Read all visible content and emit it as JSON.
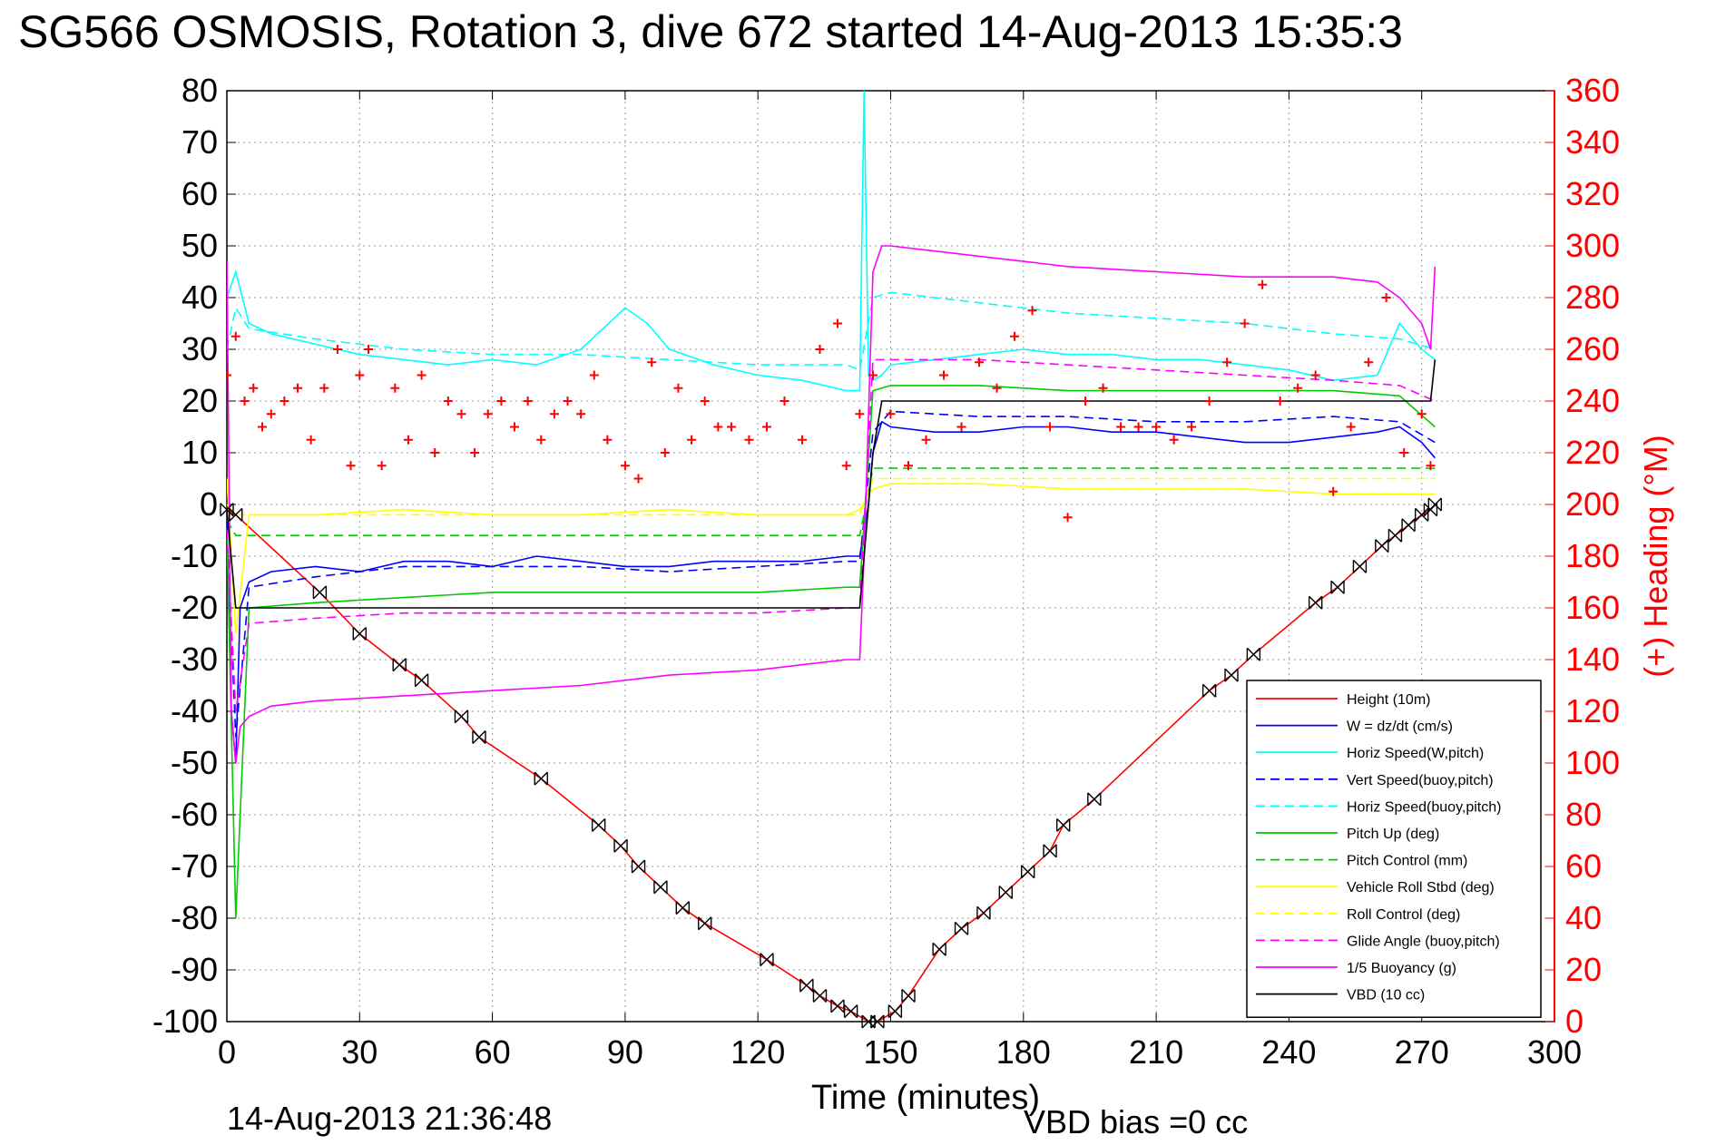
{
  "chart_data": {
    "type": "line",
    "title": "SG566 OSMOSIS, Rotation 3, dive 672 started 14-Aug-2013 15:35:3",
    "xlabel": "Time (minutes)",
    "ylabel": "",
    "y2label": "(+) Heading (°M)",
    "xlim": [
      0,
      300
    ],
    "ylim": [
      -100,
      80
    ],
    "y2lim": [
      0,
      360
    ],
    "x_ticks": [
      0,
      30,
      60,
      90,
      120,
      150,
      180,
      210,
      240,
      270,
      300
    ],
    "y_ticks": [
      80,
      70,
      60,
      50,
      40,
      30,
      20,
      10,
      0,
      -10,
      -20,
      -30,
      -40,
      -50,
      -60,
      -70,
      -80,
      -90,
      -100
    ],
    "y2_ticks": [
      360,
      340,
      320,
      300,
      280,
      260,
      240,
      220,
      200,
      180,
      160,
      140,
      120,
      100,
      80,
      60,
      40,
      20,
      0
    ],
    "grid": true,
    "legend_position": "bottom-right",
    "legend": [
      {
        "label": "Height (10m)",
        "color": "#ff0000",
        "dash": "solid"
      },
      {
        "label": "W = dz/dt (cm/s)",
        "color": "#0000ff",
        "dash": "solid"
      },
      {
        "label": "Horiz Speed(W,pitch)",
        "color": "#00ffff",
        "dash": "solid"
      },
      {
        "label": "Vert Speed(buoy,pitch)",
        "color": "#0000ff",
        "dash": "dashed"
      },
      {
        "label": "Horiz Speed(buoy,pitch)",
        "color": "#00ffff",
        "dash": "dashed"
      },
      {
        "label": "Pitch Up (deg)",
        "color": "#00cc00",
        "dash": "solid"
      },
      {
        "label": "Pitch Control (mm)",
        "color": "#00cc00",
        "dash": "dashed"
      },
      {
        "label": "Vehicle Roll Stbd (deg)",
        "color": "#ffff00",
        "dash": "solid"
      },
      {
        "label": "Roll Control (deg)",
        "color": "#ffff00",
        "dash": "dashed"
      },
      {
        "label": "Glide Angle (buoy,pitch)",
        "color": "#ff00ff",
        "dash": "dashed"
      },
      {
        "label": "1/5 Buoyancy (g)",
        "color": "#ff00ff",
        "dash": "solid"
      },
      {
        "label": "VBD (10 cc)",
        "color": "#000000",
        "dash": "solid"
      }
    ],
    "series": [
      {
        "name": "Height (10m)",
        "color": "#ff0000",
        "dash": "solid",
        "axis": "left",
        "x": [
          0,
          2,
          21,
          30,
          39,
          44,
          53,
          57,
          71,
          84,
          89,
          93,
          98,
          103,
          108,
          122,
          131,
          134,
          138,
          141,
          145,
          147,
          151,
          154,
          161,
          166,
          171,
          176,
          181,
          186,
          189,
          196,
          222,
          227,
          232,
          246,
          251,
          256,
          261,
          264,
          267,
          270,
          272,
          273
        ],
        "y": [
          -1,
          -2,
          -17,
          -25,
          -31,
          -34,
          -41,
          -45,
          -53,
          -62,
          -66,
          -70,
          -74,
          -78,
          -81,
          -88,
          -93,
          -95,
          -97,
          -98,
          -100,
          -100,
          -98,
          -95,
          -86,
          -82,
          -79,
          -75,
          -71,
          -67,
          -62,
          -57,
          -36,
          -33,
          -29,
          -19,
          -16,
          -12,
          -8,
          -6,
          -4,
          -2,
          -1,
          0
        ]
      },
      {
        "name": "W = dz/dt (cm/s)",
        "color": "#0000ff",
        "dash": "solid",
        "axis": "left",
        "x": [
          0,
          1,
          2,
          3,
          5,
          10,
          20,
          30,
          40,
          50,
          60,
          70,
          80,
          90,
          100,
          110,
          120,
          130,
          140,
          143,
          145,
          146,
          148,
          150,
          160,
          170,
          180,
          190,
          200,
          210,
          220,
          230,
          240,
          250,
          260,
          265,
          270,
          273
        ],
        "y": [
          -3,
          -40,
          -50,
          -20,
          -15,
          -13,
          -12,
          -13,
          -11,
          -11,
          -12,
          -10,
          -11,
          -12,
          -12,
          -11,
          -11,
          -11,
          -10,
          -10,
          0,
          10,
          16,
          15,
          14,
          14,
          15,
          15,
          14,
          14,
          13,
          12,
          12,
          13,
          14,
          15,
          12,
          9
        ]
      },
      {
        "name": "Horiz Speed(W,pitch)",
        "color": "#00ffff",
        "dash": "solid",
        "axis": "left",
        "x": [
          0,
          2,
          5,
          10,
          20,
          30,
          40,
          50,
          60,
          70,
          80,
          90,
          95,
          100,
          110,
          120,
          130,
          140,
          143,
          144,
          145,
          146,
          148,
          150,
          160,
          170,
          180,
          190,
          200,
          210,
          220,
          230,
          240,
          250,
          260,
          265,
          270,
          273
        ],
        "y": [
          40,
          45,
          35,
          33,
          31,
          29,
          28,
          27,
          28,
          27,
          30,
          38,
          35,
          30,
          27,
          25,
          24,
          22,
          22,
          80,
          25,
          24,
          25,
          27,
          28,
          29,
          30,
          29,
          29,
          28,
          28,
          27,
          26,
          24,
          25,
          35,
          30,
          28
        ]
      },
      {
        "name": "Vert Speed(buoy,pitch)",
        "color": "#0000ff",
        "dash": "dashed",
        "axis": "left",
        "x": [
          0,
          2,
          5,
          20,
          40,
          60,
          80,
          100,
          120,
          140,
          143,
          146,
          150,
          170,
          190,
          210,
          230,
          250,
          265,
          273
        ],
        "y": [
          -5,
          -45,
          -16,
          -14,
          -12,
          -12,
          -12,
          -13,
          -12,
          -11,
          -11,
          14,
          18,
          17,
          17,
          16,
          16,
          17,
          16,
          12
        ]
      },
      {
        "name": "Horiz Speed(buoy,pitch)",
        "color": "#00ffff",
        "dash": "dashed",
        "axis": "left",
        "x": [
          0,
          2,
          5,
          20,
          40,
          60,
          80,
          100,
          120,
          140,
          143,
          146,
          150,
          170,
          190,
          210,
          230,
          250,
          265,
          273
        ],
        "y": [
          30,
          38,
          34,
          32,
          30,
          29,
          29,
          28,
          27,
          27,
          26,
          40,
          41,
          39,
          37,
          36,
          35,
          33,
          32,
          30
        ]
      },
      {
        "name": "Pitch Up (deg)",
        "color": "#00cc00",
        "dash": "solid",
        "axis": "left",
        "x": [
          0,
          2,
          5,
          20,
          40,
          60,
          80,
          100,
          120,
          140,
          143,
          146,
          150,
          170,
          190,
          210,
          230,
          250,
          265,
          273
        ],
        "y": [
          -5,
          -80,
          -20,
          -19,
          -18,
          -17,
          -17,
          -17,
          -17,
          -16,
          -16,
          22,
          23,
          23,
          22,
          22,
          22,
          22,
          21,
          15
        ]
      },
      {
        "name": "Pitch Control (mm)",
        "color": "#00cc00",
        "dash": "dashed",
        "axis": "left",
        "x": [
          0,
          2,
          5,
          20,
          40,
          60,
          80,
          100,
          120,
          140,
          143,
          146,
          150,
          170,
          190,
          210,
          230,
          250,
          265,
          273
        ],
        "y": [
          -3,
          -6,
          -6,
          -6,
          -6,
          -6,
          -6,
          -6,
          -6,
          -6,
          -6,
          7,
          7,
          7,
          7,
          7,
          7,
          7,
          7,
          7
        ]
      },
      {
        "name": "Vehicle Roll Stbd (deg)",
        "color": "#ffff00",
        "dash": "solid",
        "axis": "left",
        "x": [
          0,
          2,
          5,
          20,
          40,
          60,
          80,
          100,
          120,
          140,
          143,
          146,
          150,
          170,
          190,
          210,
          230,
          250,
          265,
          273
        ],
        "y": [
          5,
          -25,
          -2,
          -2,
          -1,
          -2,
          -2,
          -1,
          -2,
          -2,
          -1,
          3,
          4,
          4,
          3,
          3,
          3,
          2,
          2,
          2
        ]
      },
      {
        "name": "Roll Control (deg)",
        "color": "#ffff00",
        "dash": "dashed",
        "axis": "left",
        "x": [
          0,
          2,
          5,
          20,
          40,
          60,
          80,
          100,
          120,
          140,
          143,
          146,
          150,
          170,
          190,
          210,
          230,
          250,
          265,
          273
        ],
        "y": [
          0,
          -2,
          -2,
          -2,
          -2,
          -2,
          -2,
          -2,
          -2,
          -2,
          -2,
          5,
          5,
          5,
          5,
          5,
          5,
          5,
          5,
          5
        ]
      },
      {
        "name": "Glide Angle (buoy,pitch)",
        "color": "#ff00ff",
        "dash": "dashed",
        "axis": "left",
        "x": [
          0,
          2,
          5,
          20,
          40,
          60,
          80,
          100,
          120,
          140,
          143,
          146,
          150,
          170,
          190,
          210,
          230,
          250,
          265,
          273
        ],
        "y": [
          -5,
          -40,
          -23,
          -22,
          -21,
          -21,
          -21,
          -21,
          -21,
          -20,
          -20,
          28,
          28,
          28,
          27,
          26,
          25,
          24,
          23,
          20
        ]
      },
      {
        "name": "1/5 Buoyancy (g)",
        "color": "#ff00ff",
        "dash": "solid",
        "axis": "left",
        "x": [
          0,
          1,
          2,
          3,
          5,
          10,
          20,
          40,
          60,
          80,
          100,
          120,
          140,
          143,
          144,
          146,
          148,
          150,
          170,
          190,
          210,
          230,
          250,
          260,
          265,
          270,
          272,
          273
        ],
        "y": [
          47,
          -40,
          -50,
          -43,
          -41,
          -39,
          -38,
          -37,
          -36,
          -35,
          -33,
          -32,
          -30,
          -30,
          -10,
          45,
          50,
          50,
          48,
          46,
          45,
          44,
          44,
          43,
          40,
          35,
          30,
          46
        ]
      },
      {
        "name": "VBD (10 cc)",
        "color": "#000000",
        "dash": "solid",
        "axis": "left",
        "x": [
          0,
          2,
          5,
          140,
          143,
          146,
          148,
          150,
          200,
          250,
          270,
          272,
          273
        ],
        "y": [
          -1,
          -20,
          -20,
          -20,
          -20,
          10,
          20,
          20,
          20,
          20,
          20,
          20,
          28
        ]
      },
      {
        "name": "(+) Heading (°M)",
        "color": "#ff0000",
        "dash": "none",
        "marker": "+",
        "axis": "right",
        "x": [
          0,
          2,
          4,
          6,
          8,
          10,
          13,
          16,
          19,
          22,
          25,
          28,
          30,
          32,
          35,
          38,
          41,
          44,
          47,
          50,
          53,
          56,
          59,
          62,
          65,
          68,
          71,
          74,
          77,
          80,
          83,
          86,
          90,
          93,
          96,
          99,
          102,
          105,
          108,
          111,
          114,
          118,
          122,
          126,
          130,
          134,
          138,
          140,
          143,
          146,
          150,
          154,
          158,
          162,
          166,
          170,
          174,
          178,
          182,
          186,
          190,
          194,
          198,
          202,
          206,
          210,
          214,
          218,
          222,
          226,
          230,
          234,
          238,
          242,
          246,
          250,
          254,
          258,
          262,
          266,
          270,
          272
        ],
        "y": [
          250,
          265,
          240,
          245,
          230,
          235,
          240,
          245,
          225,
          245,
          260,
          215,
          250,
          260,
          215,
          245,
          225,
          250,
          220,
          240,
          235,
          220,
          235,
          240,
          230,
          240,
          225,
          235,
          240,
          235,
          250,
          225,
          215,
          210,
          255,
          220,
          245,
          225,
          240,
          230,
          230,
          225,
          230,
          240,
          225,
          260,
          270,
          215,
          235,
          250,
          235,
          215,
          225,
          250,
          230,
          255,
          245,
          265,
          275,
          230,
          195,
          240,
          245,
          230,
          230,
          230,
          225,
          230,
          240,
          255,
          270,
          285,
          240,
          245,
          250,
          205,
          230,
          255,
          280,
          220,
          235,
          215
        ]
      }
    ]
  },
  "footer": {
    "timestamp": "14-Aug-2013 21:36:48",
    "vbd_bias": "VBD bias =0 cc"
  }
}
